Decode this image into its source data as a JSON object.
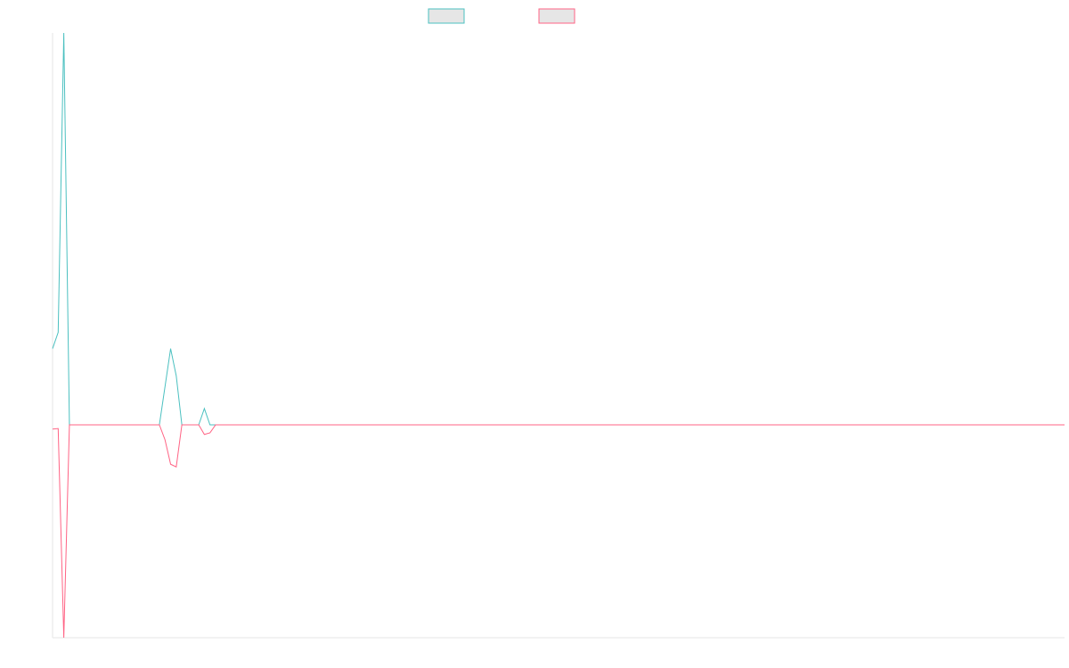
{
  "chart_data": {
    "type": "line",
    "x_count": 181,
    "grid": false,
    "legend_placement": "top-center",
    "series": [
      {
        "color": "#4bc0c0",
        "values": [
          {
            "x": 0,
            "y": 14
          },
          {
            "x": 1,
            "y": 17
          },
          {
            "x": 2,
            "y": 72
          },
          {
            "x": 3,
            "y": 0
          },
          {
            "x": 19,
            "y": 0
          },
          {
            "x": 21,
            "y": 14
          },
          {
            "x": 22,
            "y": 9
          },
          {
            "x": 23,
            "y": 0
          },
          {
            "x": 26,
            "y": 0
          },
          {
            "x": 27,
            "y": 3
          },
          {
            "x": 28,
            "y": 0
          },
          {
            "x": 180,
            "y": 0
          }
        ]
      },
      {
        "color": "#ff6384",
        "values": [
          {
            "x": 0,
            "y": -0.8
          },
          {
            "x": 1,
            "y": -0.7
          },
          {
            "x": 2,
            "y": -40
          },
          {
            "x": 3,
            "y": 0
          },
          {
            "x": 19,
            "y": 0
          },
          {
            "x": 20,
            "y": -2.8
          },
          {
            "x": 21,
            "y": -7.4
          },
          {
            "x": 22,
            "y": -7.9
          },
          {
            "x": 23,
            "y": 0
          },
          {
            "x": 26,
            "y": 0
          },
          {
            "x": 27,
            "y": -1.8
          },
          {
            "x": 28,
            "y": -1.5
          },
          {
            "x": 29,
            "y": 0
          },
          {
            "x": 180,
            "y": 0
          }
        ]
      }
    ],
    "legend": [
      {
        "color": "#4bc0c0",
        "fill": "#e6e6e6"
      },
      {
        "color": "#ff6384",
        "fill": "#e6e6e6"
      }
    ]
  }
}
